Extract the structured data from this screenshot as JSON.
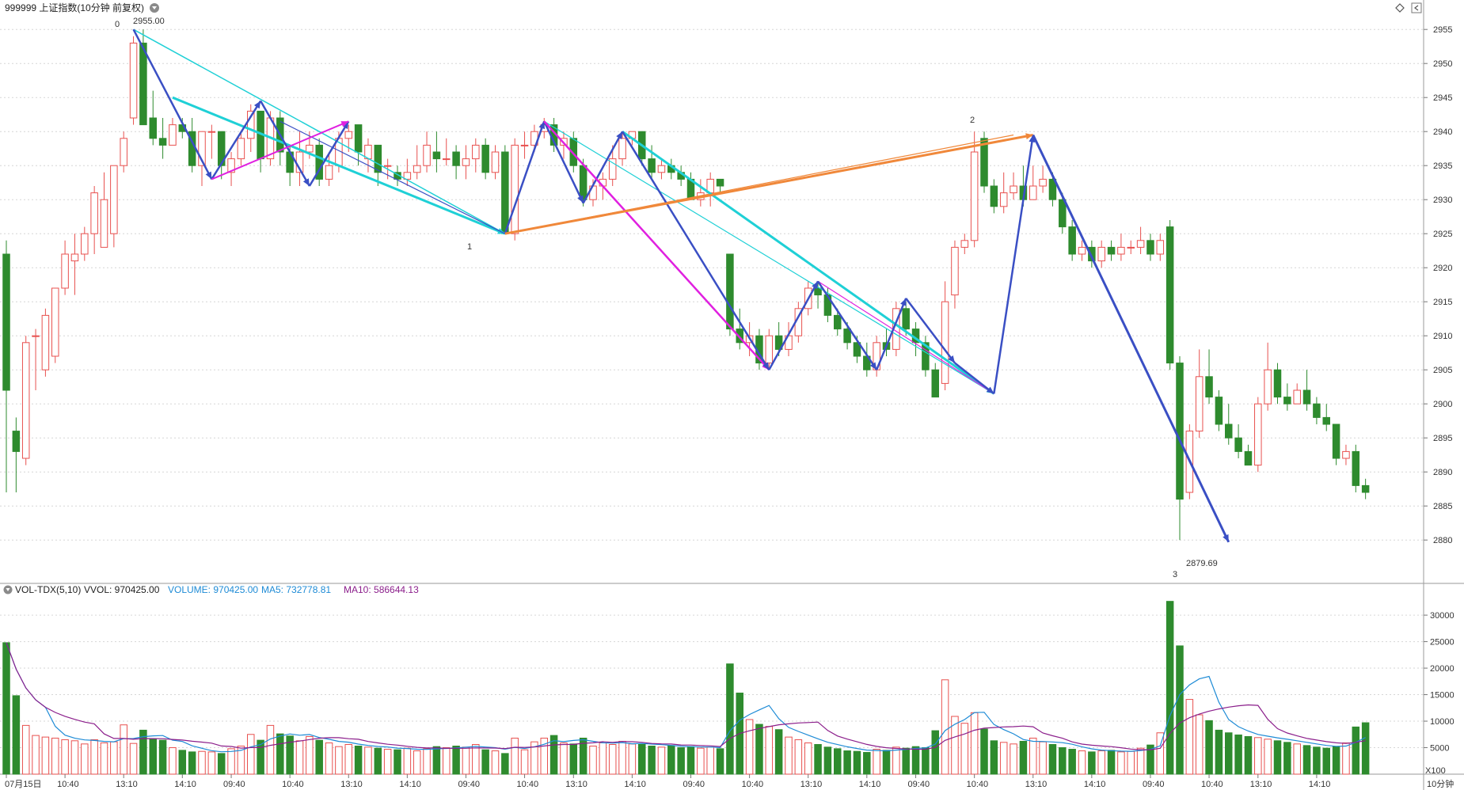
{
  "header": {
    "symbol_text": "999999 上证指数(10分钟 前复权)",
    "icon_diamond": "diamond-icon",
    "icon_collapse": "collapse-icon"
  },
  "volume_header": {
    "indicator": "VOL-TDX(5,10)",
    "vvol": "VVOL: 970425.00",
    "volume": "VOLUME: 970425.00",
    "ma5": "MA5: 732778.81",
    "ma10": "MA10: 586644.13"
  },
  "axis": {
    "price_ticks": [
      "2955",
      "2950",
      "2945",
      "2940",
      "2935",
      "2930",
      "2925",
      "2920",
      "2915",
      "2910",
      "2905",
      "2900",
      "2895",
      "2890",
      "2885",
      "2880"
    ],
    "volume_ticks": [
      "30000",
      "25000",
      "20000",
      "15000",
      "10000",
      "5000"
    ],
    "volume_unit": "X100",
    "period_label": "10分钟",
    "time_labels": [
      "07月15日",
      "10:40",
      "13:10",
      "14:10",
      "09:40",
      "10:40",
      "13:10",
      "14:10",
      "09:40",
      "10:40",
      "13:10",
      "14:10",
      "09:40",
      "10:40",
      "13:10",
      "14:10",
      "09:40",
      "10:40",
      "13:10",
      "14:10",
      "09:40",
      "10:40",
      "13:10",
      "14:10"
    ]
  },
  "annotations": {
    "wave_points": [
      "0",
      "1",
      "2",
      "3"
    ],
    "high_label": "2955.00",
    "low_label": "2879.69"
  },
  "colors": {
    "up": "#e8514f",
    "down": "#2e8b2e",
    "ma5": "#1e8bd6",
    "ma10": "#8b1e8b",
    "wave_blue": "#3a4fc4",
    "wave_cyan": "#1fd0d6",
    "wave_magenta": "#e020e0",
    "wave_orange": "#f0883a"
  },
  "chart_data": {
    "type": "candlestick",
    "price_range": [
      2877,
      2957
    ],
    "volume_range": [
      0,
      33000
    ],
    "candles": [
      [
        2922,
        2902,
        2924,
        2887,
        24800
      ],
      [
        2896,
        2893,
        2898,
        2887,
        14800
      ],
      [
        2892,
        2909,
        2910,
        2891,
        9200
      ],
      [
        2910,
        2910,
        2911,
        2902,
        7300
      ],
      [
        2905,
        2913,
        2914,
        2904,
        7000
      ],
      [
        2907,
        2917,
        2917,
        2906,
        6800
      ],
      [
        2917,
        2922,
        2924,
        2916,
        6500
      ],
      [
        2921,
        2922,
        2925,
        2916,
        6300
      ],
      [
        2922,
        2925,
        2926,
        2921,
        5700
      ],
      [
        2925,
        2931,
        2932,
        2922,
        6500
      ],
      [
        2923,
        2930,
        2934,
        2923,
        5900
      ],
      [
        2925,
        2935,
        2935,
        2923,
        6100
      ],
      [
        2935,
        2939,
        2940,
        2934,
        9300
      ],
      [
        2942,
        2953,
        2954,
        2941,
        5800
      ],
      [
        2953,
        2941,
        2955,
        2941,
        8300
      ],
      [
        2942,
        2939,
        2946,
        2938,
        6600
      ],
      [
        2939,
        2938,
        2942,
        2936,
        6400
      ],
      [
        2938,
        2941,
        2942,
        2938,
        5000
      ],
      [
        2941,
        2940,
        2942,
        2939,
        4500
      ],
      [
        2940,
        2935,
        2942,
        2934,
        4200
      ],
      [
        2935,
        2940,
        2940,
        2932,
        4300
      ],
      [
        2940,
        2940,
        2941,
        2936,
        4200
      ],
      [
        2940,
        2935,
        2940,
        2933,
        3900
      ],
      [
        2934,
        2936,
        2937,
        2932,
        4800
      ],
      [
        2936,
        2939,
        2940,
        2935,
        5300
      ],
      [
        2939,
        2943,
        2944,
        2937,
        7500
      ],
      [
        2943,
        2936,
        2943,
        2934,
        6400
      ],
      [
        2936,
        2942,
        2943,
        2935,
        9200
      ],
      [
        2942,
        2937,
        2943,
        2935,
        7600
      ],
      [
        2937,
        2934,
        2938,
        2932,
        7200
      ],
      [
        2934,
        2937,
        2940,
        2932,
        6300
      ],
      [
        2937,
        2938,
        2940,
        2936,
        7100
      ],
      [
        2938,
        2933,
        2939,
        2932,
        6400
      ],
      [
        2933,
        2935,
        2937,
        2932,
        5900
      ],
      [
        2935,
        2939,
        2940,
        2934,
        5200
      ],
      [
        2939,
        2940,
        2941,
        2937,
        5600
      ],
      [
        2941,
        2937,
        2941,
        2935,
        5300
      ],
      [
        2936,
        2938,
        2939,
        2934,
        5100
      ],
      [
        2938,
        2934,
        2938,
        2932,
        4900
      ],
      [
        2935,
        2935,
        2936,
        2933,
        4700
      ],
      [
        2934,
        2933,
        2935,
        2932,
        4600
      ],
      [
        2933,
        2934,
        2936,
        2932,
        4900
      ],
      [
        2934,
        2935,
        2938,
        2933,
        4400
      ],
      [
        2935,
        2938,
        2940,
        2934,
        4800
      ],
      [
        2937,
        2936,
        2940,
        2934,
        5200
      ],
      [
        2936,
        2936,
        2939,
        2935,
        5000
      ],
      [
        2937,
        2935,
        2938,
        2933,
        5300
      ],
      [
        2935,
        2936,
        2938,
        2933,
        5100
      ],
      [
        2936,
        2938,
        2939,
        2934,
        5600
      ],
      [
        2938,
        2934,
        2939,
        2933,
        4600
      ],
      [
        2934,
        2937,
        2938,
        2933,
        4400
      ],
      [
        2937,
        2925,
        2938,
        2925,
        3900
      ],
      [
        2925,
        2938,
        2939,
        2924,
        6800
      ],
      [
        2938,
        2938,
        2940,
        2936,
        4600
      ],
      [
        2938,
        2940,
        2941,
        2937,
        6100
      ],
      [
        2940,
        2941,
        2942,
        2939,
        6800
      ],
      [
        2941,
        2938,
        2942,
        2937,
        7300
      ],
      [
        2938,
        2939,
        2940,
        2936,
        5900
      ],
      [
        2939,
        2935,
        2940,
        2934,
        5700
      ],
      [
        2935,
        2930,
        2936,
        2929,
        6800
      ],
      [
        2930,
        2932,
        2933,
        2929,
        5300
      ],
      [
        2932,
        2933,
        2934,
        2930,
        5900
      ],
      [
        2933,
        2936,
        2938,
        2932,
        5600
      ],
      [
        2936,
        2939,
        2940,
        2935,
        6200
      ],
      [
        2939,
        2940,
        2940,
        2938,
        5700
      ],
      [
        2940,
        2936,
        2940,
        2935,
        5600
      ],
      [
        2936,
        2934,
        2938,
        2933,
        5300
      ],
      [
        2934,
        2935,
        2936,
        2933,
        5100
      ],
      [
        2935,
        2934,
        2936,
        2933,
        5400
      ],
      [
        2934,
        2933,
        2935,
        2932,
        5000
      ],
      [
        2933,
        2930,
        2934,
        2930,
        5200
      ],
      [
        2930,
        2931,
        2933,
        2929,
        4900
      ],
      [
        2931,
        2933,
        2934,
        2929,
        5100
      ],
      [
        2933,
        2932,
        2933,
        2931,
        4800
      ],
      [
        2922,
        2911,
        2922,
        2910,
        20800
      ],
      [
        2911,
        2909,
        2914,
        2908,
        15300
      ],
      [
        2909,
        2910,
        2912,
        2907,
        10300
      ],
      [
        2910,
        2906,
        2911,
        2905,
        9400
      ],
      [
        2906,
        2910,
        2911,
        2905,
        9000
      ],
      [
        2910,
        2908,
        2912,
        2907,
        8400
      ],
      [
        2908,
        2910,
        2912,
        2907,
        7000
      ],
      [
        2910,
        2914,
        2915,
        2909,
        6500
      ],
      [
        2914,
        2917,
        2918,
        2913,
        5900
      ],
      [
        2917,
        2916,
        2918,
        2914,
        5600
      ],
      [
        2916,
        2913,
        2917,
        2912,
        5100
      ],
      [
        2913,
        2911,
        2914,
        2910,
        4800
      ],
      [
        2911,
        2909,
        2912,
        2908,
        4400
      ],
      [
        2909,
        2907,
        2910,
        2906,
        4300
      ],
      [
        2907,
        2905,
        2909,
        2904,
        4100
      ],
      [
        2905,
        2909,
        2910,
        2904,
        4700
      ],
      [
        2909,
        2908,
        2911,
        2907,
        4500
      ],
      [
        2908,
        2914,
        2915,
        2907,
        5100
      ],
      [
        2914,
        2911,
        2915,
        2910,
        4900
      ],
      [
        2911,
        2909,
        2912,
        2907,
        5200
      ],
      [
        2909,
        2905,
        2910,
        2904,
        5000
      ],
      [
        2905,
        2901,
        2906,
        2901,
        8200
      ],
      [
        2903,
        2915,
        2918,
        2902,
        17800
      ],
      [
        2916,
        2923,
        2924,
        2914,
        10900
      ],
      [
        2923,
        2924,
        2925,
        2922,
        9600
      ],
      [
        2924,
        2937,
        2940,
        2923,
        11600
      ],
      [
        2939,
        2932,
        2940,
        2931,
        8500
      ],
      [
        2932,
        2929,
        2933,
        2928,
        6300
      ],
      [
        2929,
        2931,
        2934,
        2928,
        6000
      ],
      [
        2931,
        2932,
        2934,
        2930,
        5700
      ],
      [
        2932,
        2930,
        2935,
        2929,
        6200
      ],
      [
        2930,
        2932,
        2935,
        2930,
        6800
      ],
      [
        2932,
        2933,
        2935,
        2931,
        6100
      ],
      [
        2933,
        2930,
        2934,
        2929,
        5600
      ],
      [
        2930,
        2926,
        2931,
        2925,
        5000
      ],
      [
        2926,
        2922,
        2927,
        2921,
        4700
      ],
      [
        2922,
        2923,
        2924,
        2921,
        4400
      ],
      [
        2923,
        2921,
        2924,
        2920,
        4200
      ],
      [
        2921,
        2923,
        2924,
        2920,
        4400
      ],
      [
        2923,
        2922,
        2924,
        2921,
        4500
      ],
      [
        2922,
        2923,
        2925,
        2921,
        4200
      ],
      [
        2923,
        2923,
        2924,
        2922,
        4300
      ],
      [
        2923,
        2924,
        2926,
        2922,
        4900
      ],
      [
        2924,
        2922,
        2925,
        2921,
        5500
      ],
      [
        2922,
        2924,
        2925,
        2921,
        7800
      ],
      [
        2926,
        2906,
        2927,
        2905,
        32600
      ],
      [
        2906,
        2886,
        2907,
        2880,
        24200
      ],
      [
        2887,
        2896,
        2897,
        2886,
        14100
      ],
      [
        2896,
        2904,
        2908,
        2895,
        11200
      ],
      [
        2904,
        2901,
        2908,
        2900,
        10100
      ],
      [
        2901,
        2897,
        2902,
        2896,
        8300
      ],
      [
        2897,
        2895,
        2900,
        2894,
        7800
      ],
      [
        2895,
        2893,
        2897,
        2892,
        7400
      ],
      [
        2893,
        2891,
        2894,
        2891,
        7100
      ],
      [
        2891,
        2900,
        2901,
        2890,
        6900
      ],
      [
        2900,
        2905,
        2909,
        2899,
        6600
      ],
      [
        2905,
        2901,
        2906,
        2900,
        6300
      ],
      [
        2901,
        2900,
        2903,
        2899,
        6000
      ],
      [
        2900,
        2902,
        2903,
        2900,
        5700
      ],
      [
        2902,
        2900,
        2905,
        2899,
        5400
      ],
      [
        2900,
        2898,
        2901,
        2897,
        5100
      ],
      [
        2898,
        2897,
        2900,
        2896,
        4900
      ],
      [
        2897,
        2892,
        2897,
        2891,
        5200
      ],
      [
        2892,
        2893,
        2894,
        2891,
        5900
      ],
      [
        2893,
        2888,
        2894,
        2887,
        8900
      ],
      [
        2888,
        2887,
        2889,
        2886,
        9700
      ]
    ]
  }
}
